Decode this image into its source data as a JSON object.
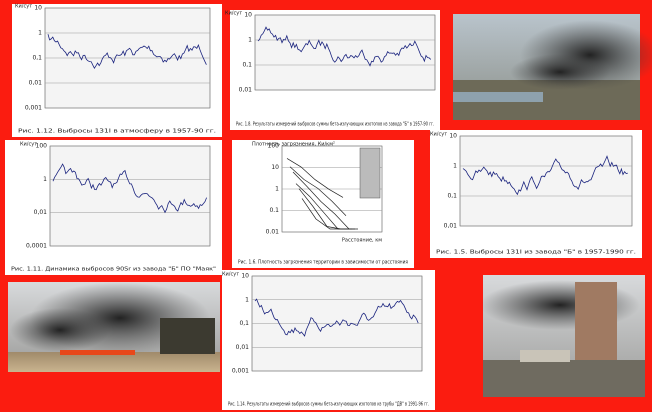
{
  "charts": [
    {
      "y_label": "Ки/сут",
      "ticks": [
        "10",
        "1",
        "0,1",
        "0,01",
        "0,001"
      ],
      "caption": "Рис. 1.12. Выбросы 131I в атмосферу в 1957-90 гг."
    },
    {
      "y_label": "Ки/сут",
      "ticks": [
        "10",
        "1",
        "0,1",
        "0,01"
      ],
      "caption": "Рис. 1.8. Результаты измерений выбросов суммы бета-излучающих изотопов из завода \"Б\" в 1957-90 гг."
    },
    {
      "y_label": "Ки/сут",
      "ticks": [
        "100",
        "1",
        "0,01",
        "0,0001"
      ],
      "caption": "Рис. 1.11. Динамика выбросов 90Sr из завода \"Б\" ПО \"Маяк\""
    },
    {
      "y_label": "Плотность загрязнения, Ки/км²",
      "ticks": [
        "100",
        "10",
        "1",
        "0.1",
        "0.01"
      ],
      "x_label": "Расстояние, км",
      "caption": "Рис. 1.6. Плотность загрязнения территории в зависимости от расстояния"
    },
    {
      "y_label": "Ки/сут",
      "ticks": [
        "10",
        "1",
        "0,1",
        "0,01"
      ],
      "caption": "Рис. 1.5. Выбросы 131I из завода \"Б\" в 1957-1990 гг."
    },
    {
      "y_label": "Ки/сут",
      "ticks": [
        "10",
        "1",
        "0,1",
        "0,01",
        "0,001"
      ],
      "caption": "Рис. 1.14. Результаты измерений выбросов суммы бета-излучающих изотопов из трубы \"ДВ\" в 1991-96 гг."
    }
  ]
}
